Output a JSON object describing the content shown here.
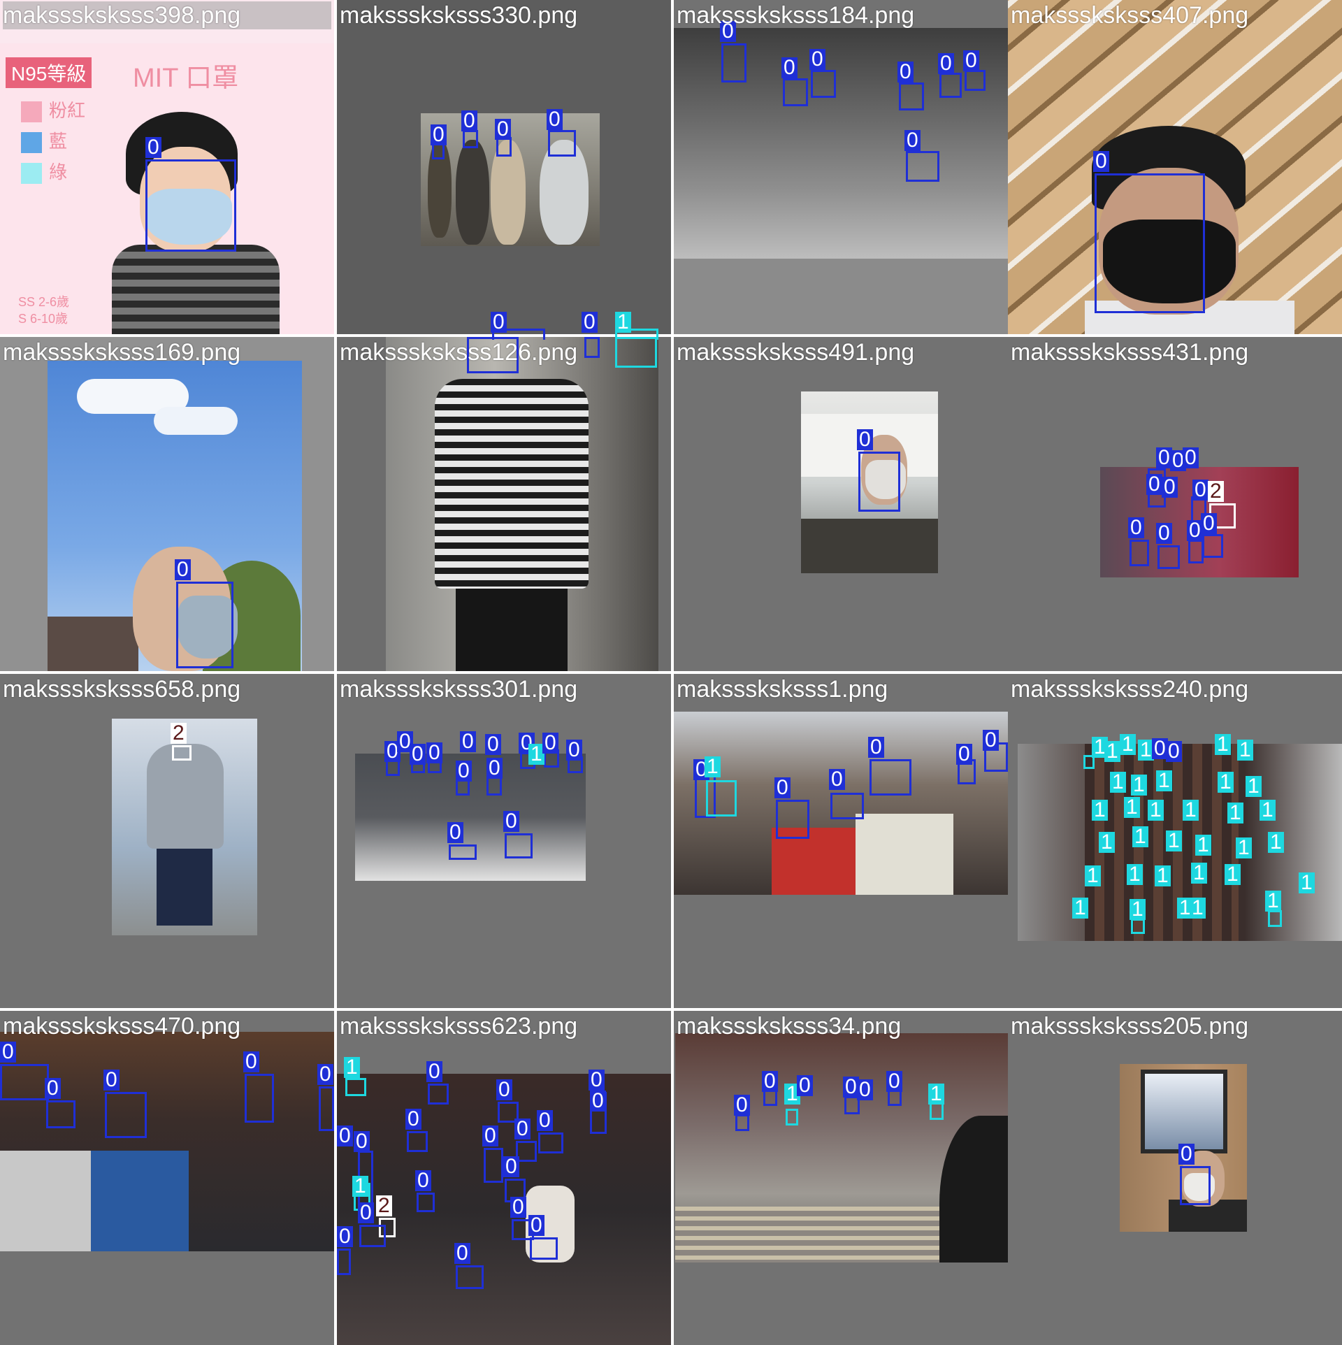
{
  "colors": {
    "class0": "#1f2fd6",
    "class1": "#1ed8e0",
    "class2": "#ffffff",
    "tile_bg": "#727272"
  },
  "tiles": [
    {
      "filename": "maksssksksss398.png",
      "sign_badge": "N95等級",
      "sign_brand": "MIT 口罩",
      "legend": [
        "粉紅",
        "藍",
        "綠"
      ],
      "sizes": [
        "SS 2-6歲",
        "S 6-10歲"
      ]
    },
    {
      "filename": "maksssksksss330.png"
    },
    {
      "filename": "maksssksksss184.png"
    },
    {
      "filename": "maksssksksss407.png"
    },
    {
      "filename": "maksssksksss169.png"
    },
    {
      "filename": "maksssksksss126.png"
    },
    {
      "filename": "maksssksksss491.png"
    },
    {
      "filename": "maksssksksss431.png"
    },
    {
      "filename": "maksssksksss658.png"
    },
    {
      "filename": "maksssksksss301.png"
    },
    {
      "filename": "maksssksksss1.png"
    },
    {
      "filename": "maksssksksss240.png"
    },
    {
      "filename": "maksssksksss470.png"
    },
    {
      "filename": "maksssksksss623.png"
    },
    {
      "filename": "maksssksksss34.png"
    },
    {
      "filename": "maksssksksss205.png"
    }
  ],
  "labels": {
    "class0": "0",
    "class1": "1",
    "class2": "2"
  }
}
